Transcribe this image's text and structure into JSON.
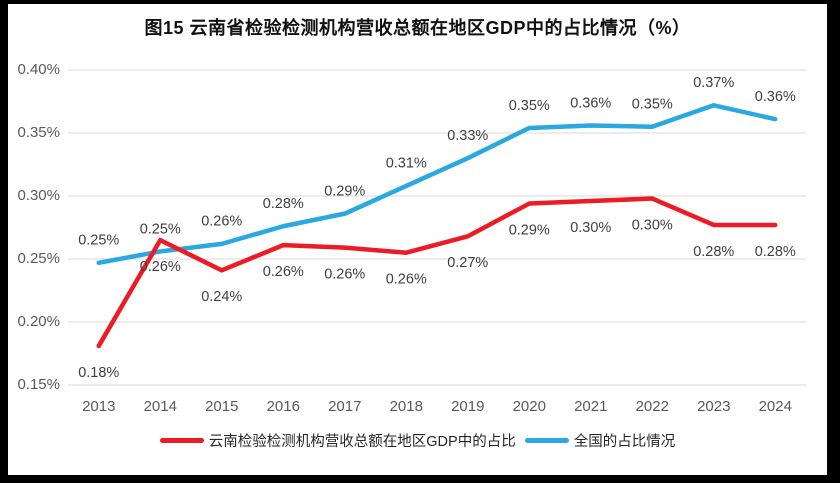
{
  "title": "图15 云南省检验检测机构营收总额在地区GDP中的占比情况（%）",
  "chart_data": {
    "type": "line",
    "title": "图15 云南省检验检测机构营收总额在地区GDP中的占比情况（%）",
    "categories": [
      "2013",
      "2014",
      "2015",
      "2016",
      "2017",
      "2018",
      "2019",
      "2020",
      "2021",
      "2022",
      "2023",
      "2024"
    ],
    "series": [
      {
        "name": "云南检验检测机构营收总额在地区GDP中的占比",
        "color": "#ED1C24",
        "values": [
          0.18,
          0.26,
          0.24,
          0.26,
          0.26,
          0.26,
          0.27,
          0.29,
          0.3,
          0.3,
          0.28,
          0.28
        ],
        "labels": [
          "0.18%",
          "0.26%",
          "0.24%",
          "0.26%",
          "0.26%",
          "0.26%",
          "0.27%",
          "0.29%",
          "0.30%",
          "0.30%",
          "0.28%",
          "0.28%"
        ],
        "plot_values": [
          0.181,
          0.265,
          0.241,
          0.261,
          0.259,
          0.255,
          0.268,
          0.294,
          0.296,
          0.298,
          0.277,
          0.277
        ],
        "label_position": "below"
      },
      {
        "name": "全国的占比情况",
        "color": "#29A9E0",
        "values": [
          0.25,
          0.25,
          0.26,
          0.28,
          0.29,
          0.31,
          0.33,
          0.35,
          0.36,
          0.35,
          0.37,
          0.36
        ],
        "labels": [
          "0.25%",
          "0.25%",
          "0.26%",
          "0.28%",
          "0.29%",
          "0.31%",
          "0.33%",
          "0.35%",
          "0.36%",
          "0.35%",
          "0.37%",
          "0.36%"
        ],
        "plot_values": [
          0.247,
          0.256,
          0.262,
          0.276,
          0.286,
          0.308,
          0.33,
          0.354,
          0.356,
          0.355,
          0.372,
          0.361
        ],
        "label_position": "above"
      }
    ],
    "xlabel": "",
    "ylabel": "",
    "ylim": [
      0.15,
      0.4
    ],
    "y_ticks": [
      {
        "value": 0.4,
        "label": "0.40%"
      },
      {
        "value": 0.35,
        "label": "0.35%"
      },
      {
        "value": 0.3,
        "label": "0.30%"
      },
      {
        "value": 0.25,
        "label": "0.25%"
      },
      {
        "value": 0.2,
        "label": "0.20%"
      },
      {
        "value": 0.15,
        "label": "0.15%"
      }
    ],
    "grid": "horizontal",
    "legend_position": "bottom"
  },
  "legend": {
    "items": [
      {
        "label": "云南检验检测机构营收总额在地区GDP中的占比",
        "color": "#ED1C24"
      },
      {
        "label": "全国的占比情况",
        "color": "#29A9E0"
      }
    ]
  },
  "colors": {
    "yunnan_line": "#ED1C24",
    "national_line": "#29A9E0",
    "gridline": "#D9D9D9",
    "axis_text": "#595959",
    "data_label_text": "#3F3F3F",
    "background": "#FFFFFF",
    "frame": "#000000"
  }
}
